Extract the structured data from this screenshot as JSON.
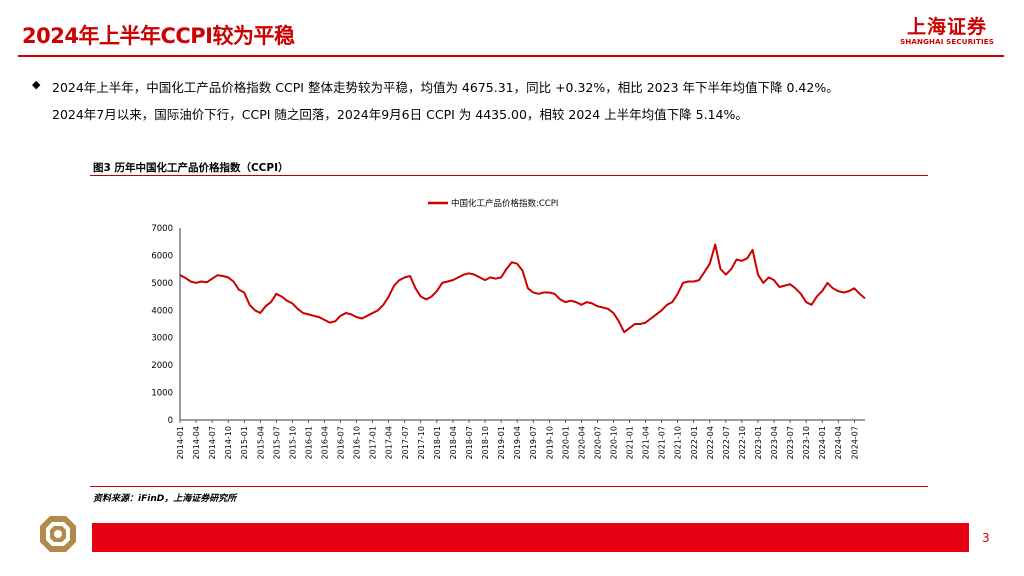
{
  "header": {
    "title": "2024年上半年CCPI较为平稳",
    "logo_cn": "上海证券",
    "logo_en": "SHANGHAI SECURITIES"
  },
  "body": {
    "bullet_symbol": "◆",
    "line1": "2024年上半年，中国化工产品价格指数 CCPI 整体走势较为平稳，均值为 4675.31，同比 +0.32%，相比 2023 年下半年均值下降 0.42%。",
    "line2": "2024年7月以来，国际油价下行，CCPI 随之回落，2024年9月6日 CCPI 为 4435.00，相较 2024 上半年均值下降 5.14%。"
  },
  "figure": {
    "title": "图3  历年中国化工产品价格指数（CCPI）",
    "source": "资料来源：iFinD，上海证券研究所"
  },
  "footer": {
    "page_number": "3"
  },
  "colors": {
    "brand_red": "#cc0000",
    "series": "#cc0000",
    "footer_bar": "#e60012"
  },
  "chart_data": {
    "type": "line",
    "legend": "中国化工产品价格指数:CCPI",
    "legend_position": "top-center",
    "grid": false,
    "ylim": [
      0,
      7000
    ],
    "yticks": [
      0,
      1000,
      2000,
      3000,
      4000,
      5000,
      6000,
      7000
    ],
    "xlim": [
      "2014-01",
      "2024-09"
    ],
    "xticks": [
      "2014-01",
      "2014-04",
      "2014-07",
      "2014-10",
      "2015-01",
      "2015-04",
      "2015-07",
      "2015-10",
      "2016-01",
      "2016-04",
      "2016-07",
      "2016-10",
      "2017-01",
      "2017-04",
      "2017-07",
      "2017-10",
      "2018-01",
      "2018-04",
      "2018-07",
      "2018-10",
      "2019-01",
      "2019-04",
      "2019-07",
      "2019-10",
      "2020-01",
      "2020-04",
      "2020-07",
      "2020-10",
      "2021-01",
      "2021-04",
      "2021-07",
      "2021-10",
      "2022-01",
      "2022-04",
      "2022-07",
      "2022-10",
      "2023-01",
      "2023-04",
      "2023-07",
      "2023-10",
      "2024-01",
      "2024-04",
      "2024-07"
    ],
    "series": [
      {
        "name": "中国化工产品价格指数:CCPI",
        "points": [
          [
            "2014-01",
            5280
          ],
          [
            "2014-02",
            5180
          ],
          [
            "2014-03",
            5050
          ],
          [
            "2014-04",
            5000
          ],
          [
            "2014-05",
            5050
          ],
          [
            "2014-06",
            5020
          ],
          [
            "2014-07",
            5150
          ],
          [
            "2014-08",
            5280
          ],
          [
            "2014-09",
            5250
          ],
          [
            "2014-10",
            5200
          ],
          [
            "2014-11",
            5050
          ],
          [
            "2014-12",
            4750
          ],
          [
            "2015-01",
            4650
          ],
          [
            "2015-02",
            4200
          ],
          [
            "2015-03",
            4000
          ],
          [
            "2015-04",
            3900
          ],
          [
            "2015-05",
            4150
          ],
          [
            "2015-06",
            4300
          ],
          [
            "2015-07",
            4600
          ],
          [
            "2015-08",
            4500
          ],
          [
            "2015-09",
            4350
          ],
          [
            "2015-10",
            4250
          ],
          [
            "2015-11",
            4050
          ],
          [
            "2015-12",
            3900
          ],
          [
            "2016-01",
            3850
          ],
          [
            "2016-02",
            3800
          ],
          [
            "2016-03",
            3750
          ],
          [
            "2016-04",
            3650
          ],
          [
            "2016-05",
            3550
          ],
          [
            "2016-06",
            3600
          ],
          [
            "2016-07",
            3800
          ],
          [
            "2016-08",
            3900
          ],
          [
            "2016-09",
            3850
          ],
          [
            "2016-10",
            3750
          ],
          [
            "2016-11",
            3700
          ],
          [
            "2016-12",
            3800
          ],
          [
            "2017-01",
            3900
          ],
          [
            "2017-02",
            4000
          ],
          [
            "2017-03",
            4200
          ],
          [
            "2017-04",
            4500
          ],
          [
            "2017-05",
            4900
          ],
          [
            "2017-06",
            5100
          ],
          [
            "2017-07",
            5200
          ],
          [
            "2017-08",
            5250
          ],
          [
            "2017-09",
            4800
          ],
          [
            "2017-10",
            4500
          ],
          [
            "2017-11",
            4400
          ],
          [
            "2017-12",
            4500
          ],
          [
            "2018-01",
            4700
          ],
          [
            "2018-02",
            5000
          ],
          [
            "2018-03",
            5050
          ],
          [
            "2018-04",
            5100
          ],
          [
            "2018-05",
            5200
          ],
          [
            "2018-06",
            5300
          ],
          [
            "2018-07",
            5350
          ],
          [
            "2018-08",
            5300
          ],
          [
            "2018-09",
            5200
          ],
          [
            "2018-10",
            5100
          ],
          [
            "2018-11",
            5200
          ],
          [
            "2018-12",
            5150
          ],
          [
            "2019-01",
            5200
          ],
          [
            "2019-02",
            5500
          ],
          [
            "2019-03",
            5750
          ],
          [
            "2019-04",
            5700
          ],
          [
            "2019-05",
            5450
          ],
          [
            "2019-06",
            4800
          ],
          [
            "2019-07",
            4650
          ],
          [
            "2019-08",
            4600
          ],
          [
            "2019-09",
            4650
          ],
          [
            "2019-10",
            4650
          ],
          [
            "2019-11",
            4600
          ],
          [
            "2019-12",
            4400
          ],
          [
            "2020-01",
            4300
          ],
          [
            "2020-02",
            4350
          ],
          [
            "2020-03",
            4300
          ],
          [
            "2020-04",
            4200
          ],
          [
            "2020-05",
            4300
          ],
          [
            "2020-06",
            4250
          ],
          [
            "2020-07",
            4150
          ],
          [
            "2020-08",
            4100
          ],
          [
            "2020-09",
            4050
          ],
          [
            "2020-10",
            3900
          ],
          [
            "2020-11",
            3600
          ],
          [
            "2020-12",
            3200
          ],
          [
            "2021-01",
            3350
          ],
          [
            "2021-02",
            3500
          ],
          [
            "2021-03",
            3500
          ],
          [
            "2021-04",
            3550
          ],
          [
            "2021-05",
            3700
          ],
          [
            "2021-06",
            3850
          ],
          [
            "2021-07",
            4000
          ],
          [
            "2021-08",
            4200
          ],
          [
            "2021-09",
            4300
          ],
          [
            "2021-10",
            4600
          ],
          [
            "2021-11",
            5000
          ],
          [
            "2021-12",
            5050
          ],
          [
            "2022-01",
            5050
          ],
          [
            "2022-02",
            5100
          ],
          [
            "2022-03",
            5400
          ],
          [
            "2022-04",
            5700
          ],
          [
            "2022-05",
            6400
          ],
          [
            "2022-06",
            5500
          ],
          [
            "2022-07",
            5300
          ],
          [
            "2022-08",
            5500
          ],
          [
            "2022-09",
            5850
          ],
          [
            "2022-10",
            5800
          ],
          [
            "2022-11",
            5900
          ],
          [
            "2022-12",
            6200
          ],
          [
            "2023-01",
            5300
          ],
          [
            "2023-02",
            5000
          ],
          [
            "2023-03",
            5200
          ],
          [
            "2023-04",
            5100
          ],
          [
            "2023-05",
            4850
          ],
          [
            "2023-06",
            4900
          ],
          [
            "2023-07",
            4950
          ],
          [
            "2023-08",
            4800
          ],
          [
            "2023-09",
            4600
          ],
          [
            "2023-10",
            4300
          ],
          [
            "2023-11",
            4200
          ],
          [
            "2023-12",
            4500
          ],
          [
            "2024-01",
            4700
          ],
          [
            "2024-02",
            5000
          ],
          [
            "2024-03",
            4800
          ],
          [
            "2024-04",
            4700
          ],
          [
            "2024-05",
            4650
          ],
          [
            "2024-06",
            4700
          ],
          [
            "2024-07",
            4800
          ],
          [
            "2024-08",
            4600
          ],
          [
            "2024-09",
            4435
          ]
        ]
      }
    ]
  }
}
